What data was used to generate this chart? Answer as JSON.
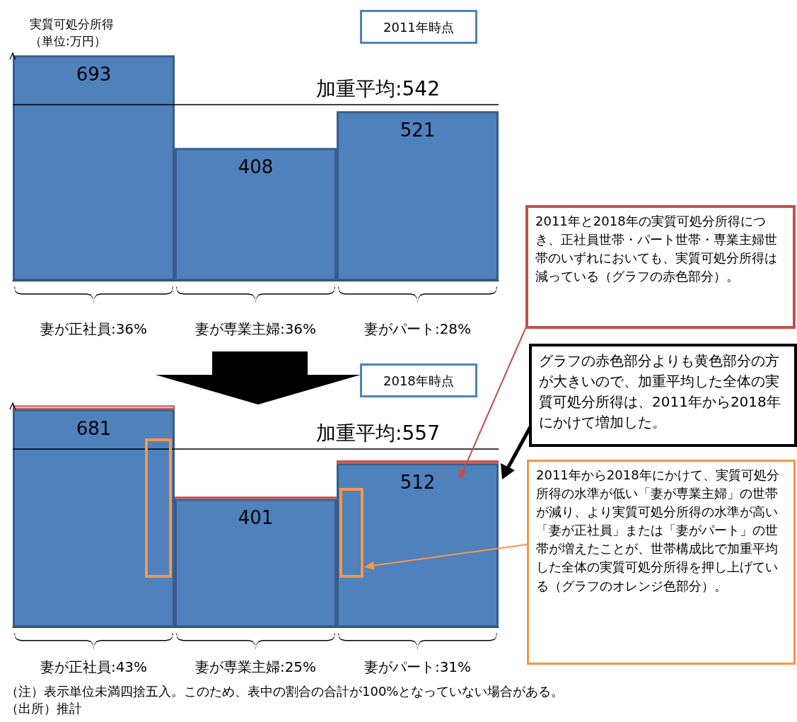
{
  "chart_data": [
    {
      "type": "bar",
      "title": "2011年時点",
      "ylabel": "実質可処分所得（単位:万円）",
      "categories": [
        "妻が正社員:36%",
        "妻が専業主婦:36%",
        "妻がパート:28%"
      ],
      "values": [
        693,
        408,
        521
      ],
      "color": "#4f81bd",
      "data_labels": true,
      "ref_lines": [
        {
          "axis": "y",
          "value": 542,
          "label": "加重平均:542",
          "color": "#000000"
        }
      ]
    },
    {
      "type": "bar",
      "title": "2018年時点",
      "categories": [
        "妻が正社員:43%",
        "妻が専業主婦:25%",
        "妻がパート:31%"
      ],
      "stacked": true,
      "series": [
        {
          "color": "#4f81bd",
          "values": [
            681,
            401,
            512
          ],
          "value_labels": [
            "681",
            "401",
            "512"
          ]
        },
        {
          "color": "#c0504d",
          "values": [
            12,
            7,
            9
          ]
        }
      ],
      "ref_lines": [
        {
          "axis": "y",
          "value": 557,
          "label": "加重平均:557",
          "color": "#000000"
        }
      ],
      "annotations": [
        "2011年と2018年の実質可処分所得につき、正社員世帯・パート世帯・専業主婦世帯のいずれにおいても、実質可処分所得は減っている（グラフの赤色部分）。",
        "グラフの赤色部分よりも黄色部分の方が大きいので、加重平均した全体の実質可処分所得は、2011年から2018年にかけて増加した。",
        "2011年から2018年にかけて、実質可処分所得の水準が低い「妻が専業主婦」の世帯が減り、より実質可処分所得の水準が高い「妻が正社員」または「妻がパート」の世帯が増えたことが、世帯構成比で加重平均した全体の実質可処分所得を押し上げている（グラフのオレンジ色部分）。",
        "（注）表示単位未満四捨五入。このため、表中の割合の合計が100%となっていない場合がある。",
        "（出所）推計"
      ]
    }
  ]
}
